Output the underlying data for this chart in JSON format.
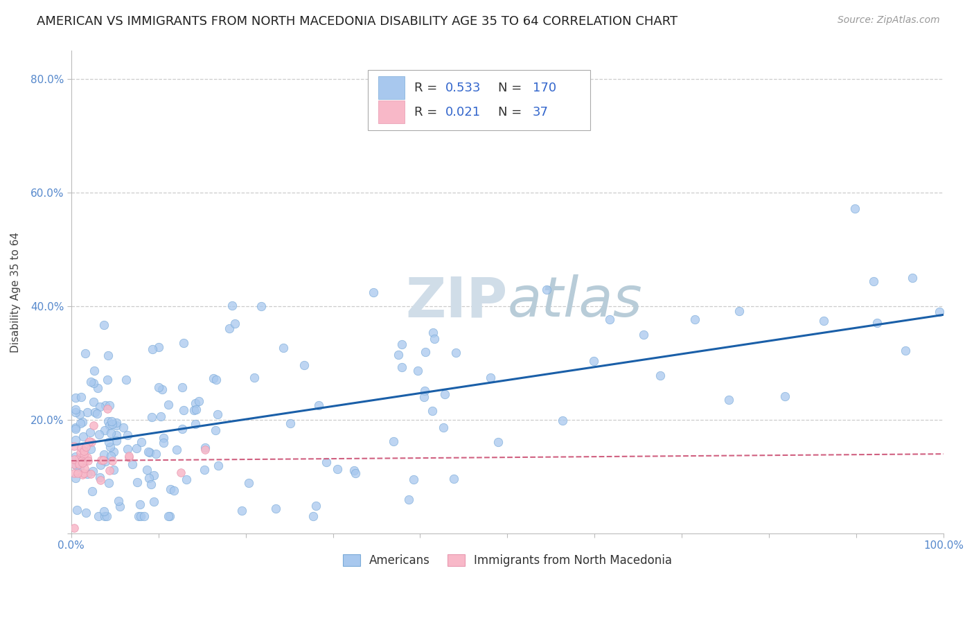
{
  "title": "AMERICAN VS IMMIGRANTS FROM NORTH MACEDONIA DISABILITY AGE 35 TO 64 CORRELATION CHART",
  "source": "Source: ZipAtlas.com",
  "ylabel": "Disability Age 35 to 64",
  "xlim": [
    0,
    1.0
  ],
  "ylim": [
    0,
    0.85
  ],
  "xticks": [
    0.0,
    0.1,
    0.2,
    0.3,
    0.4,
    0.5,
    0.6,
    0.7,
    0.8,
    0.9,
    1.0
  ],
  "yticks": [
    0.0,
    0.2,
    0.4,
    0.6,
    0.8
  ],
  "ytick_labels": [
    "",
    "20.0%",
    "40.0%",
    "60.0%",
    "80.0%"
  ],
  "americans_R": 0.533,
  "americans_N": 170,
  "immigrants_R": 0.021,
  "immigrants_N": 37,
  "legend_labels": [
    "Americans",
    "Immigrants from North Macedonia"
  ],
  "blue_fill": "#a8c8ee",
  "blue_edge": "#7aaad8",
  "pink_fill": "#f8b8c8",
  "pink_edge": "#e898b0",
  "blue_line_color": "#1a5fa8",
  "pink_line_color": "#d06080",
  "watermark_color": "#d0dde8",
  "title_fontsize": 13,
  "axis_label_fontsize": 11,
  "tick_fontsize": 11,
  "legend_fontsize": 13,
  "legend_value_color": "#3366cc",
  "legend_N_color": "#222222"
}
